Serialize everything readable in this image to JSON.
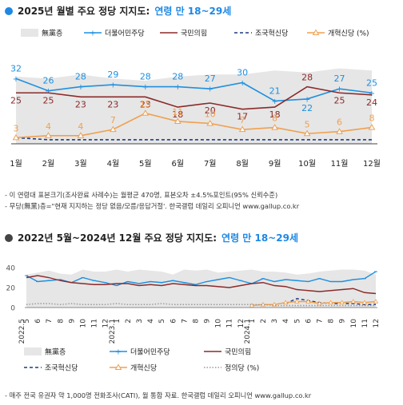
{
  "colors": {
    "none": "#e6e6e6",
    "minjoo": "#1e90e0",
    "ppp": "#8b2a2a",
    "rebuild": "#1f3a80",
    "reform": "#f0a050",
    "justice": "#9a9a9a",
    "title_accent": "#1e88e5"
  },
  "section1": {
    "title_main": "2025년 월별 주요 정당 지지도:",
    "title_accent": "연령 만 18~29세",
    "notes": [
      "- 이 연령대 표본크기(조사완료 사례수)는 월평균 470명, 표본오차 ±4.5%포인트(95% 신뢰수준)",
      "- 무당(無黨)층=\"현재 지지하는 정당 없음/모름/응답거절'. 한국갤럽 데일리 오피니언 www.gallup.co.kr"
    ]
  },
  "section2": {
    "title_main": "2022년 5월~2024년 12월 주요 정당 지지도:",
    "title_accent": "연령 만 18~29세",
    "note": "- 매주 전국 유권자 약 1,000명 전화조사(CATI), 월 통합 자료. 한국갤럽 데일리 오피니언 www.gallup.co.kr"
  },
  "chart_data": [
    {
      "type": "line",
      "title": "2025년 월별 주요 정당 지지도: 연령 만 18~29세",
      "categories": [
        "1월",
        "2월",
        "3월",
        "4월",
        "5월",
        "6월",
        "7월",
        "8월",
        "9월",
        "10월",
        "11월",
        "12월"
      ],
      "legend": [
        "無黨층",
        "더불어민주당",
        "국민의힘",
        "조국혁신당",
        "개혁신당 (%)"
      ],
      "legend_position": "top",
      "series": [
        {
          "name": "無黨층",
          "type": "area",
          "color_key": "none",
          "values": [
            33,
            32,
            34,
            32,
            31,
            33,
            34,
            34,
            36,
            35,
            37,
            36
          ]
        },
        {
          "name": "더불어민주당",
          "color_key": "minjoo",
          "values": [
            32,
            26,
            28,
            29,
            28,
            28,
            27,
            30,
            21,
            22,
            27,
            25
          ],
          "labels": true
        },
        {
          "name": "국민의힘",
          "color_key": "ppp",
          "values": [
            25,
            25,
            23,
            23,
            23,
            18,
            20,
            17,
            18,
            28,
            25,
            24
          ],
          "labels": true
        },
        {
          "name": "조국혁신당",
          "color_key": "rebuild",
          "style": "dashed",
          "values": [
            3,
            2,
            2,
            2,
            2,
            2,
            2,
            2,
            2,
            2,
            2,
            2
          ]
        },
        {
          "name": "개혁신당",
          "color_key": "reform",
          "values": [
            3,
            4,
            4,
            7,
            15,
            11,
            10,
            7,
            8,
            5,
            6,
            8
          ],
          "labels": true
        }
      ]
    },
    {
      "type": "line",
      "title": "2022년 5월~2024년 12월 주요 정당 지지도: 연령 만 18~29세",
      "year_labels": [
        "2022.5",
        "2023.1",
        "2024.1"
      ],
      "month_ticks": [
        "5",
        "6",
        "7",
        "8",
        "9",
        "10",
        "11",
        "12",
        "1",
        "2",
        "3",
        "4",
        "5",
        "6",
        "7",
        "8",
        "9",
        "10",
        "11",
        "12",
        "1",
        "2",
        "3",
        "4",
        "5",
        "6",
        "7",
        "8",
        "9",
        "10",
        "11",
        "12"
      ],
      "y_ticks": [
        0,
        20,
        40
      ],
      "ylim": [
        0,
        40
      ],
      "legend": [
        "無黨층",
        "더불어민주당",
        "국민의힘",
        "조국혁신당",
        "개혁신당",
        "정의당 (%)"
      ],
      "legend_position": "bottom",
      "series": [
        {
          "name": "無黨층",
          "type": "area",
          "color_key": "none",
          "values": [
            33,
            35,
            37,
            34,
            33,
            38,
            36,
            36,
            38,
            36,
            38,
            37,
            36,
            33,
            38,
            37,
            38,
            35,
            36,
            37,
            38,
            36,
            36,
            35,
            33,
            34,
            36,
            37,
            38,
            38,
            37,
            33
          ]
        },
        {
          "name": "더불어민주당",
          "color_key": "minjoo",
          "values": [
            32,
            26,
            27,
            28,
            25,
            30,
            27,
            25,
            22,
            26,
            24,
            26,
            25,
            27,
            25,
            23,
            26,
            28,
            30,
            27,
            24,
            29,
            26,
            28,
            27,
            26,
            29,
            26,
            26,
            28,
            29,
            36
          ]
        },
        {
          "name": "국민의힘",
          "color_key": "ppp",
          "values": [
            30,
            32,
            30,
            27,
            25,
            24,
            23,
            23,
            24,
            24,
            22,
            23,
            22,
            24,
            23,
            22,
            22,
            21,
            20,
            22,
            24,
            25,
            22,
            21,
            18,
            17,
            16,
            17,
            18,
            19,
            15,
            14
          ]
        },
        {
          "name": "조국혁신당",
          "color_key": "rebuild",
          "style": "dashed",
          "values": [
            null,
            null,
            null,
            null,
            null,
            null,
            null,
            null,
            null,
            null,
            null,
            null,
            null,
            null,
            null,
            null,
            null,
            null,
            null,
            null,
            null,
            null,
            null,
            4,
            9,
            7,
            5,
            4,
            4,
            4,
            3,
            3
          ]
        },
        {
          "name": "개혁신당",
          "color_key": "reform",
          "values": [
            null,
            null,
            null,
            null,
            null,
            null,
            null,
            null,
            null,
            null,
            null,
            null,
            null,
            null,
            null,
            null,
            null,
            null,
            null,
            null,
            2,
            3,
            3,
            5,
            6,
            6,
            4,
            5,
            5,
            6,
            5,
            6
          ]
        },
        {
          "name": "정의당",
          "color_key": "justice",
          "style": "dotted",
          "values": [
            3,
            4,
            4,
            3,
            4,
            3,
            3,
            3,
            4,
            3,
            3,
            3,
            4,
            3,
            3,
            3,
            3,
            3,
            3,
            3,
            3,
            3,
            2,
            2,
            2,
            2,
            2,
            2,
            2,
            2,
            2,
            2
          ]
        }
      ]
    }
  ]
}
